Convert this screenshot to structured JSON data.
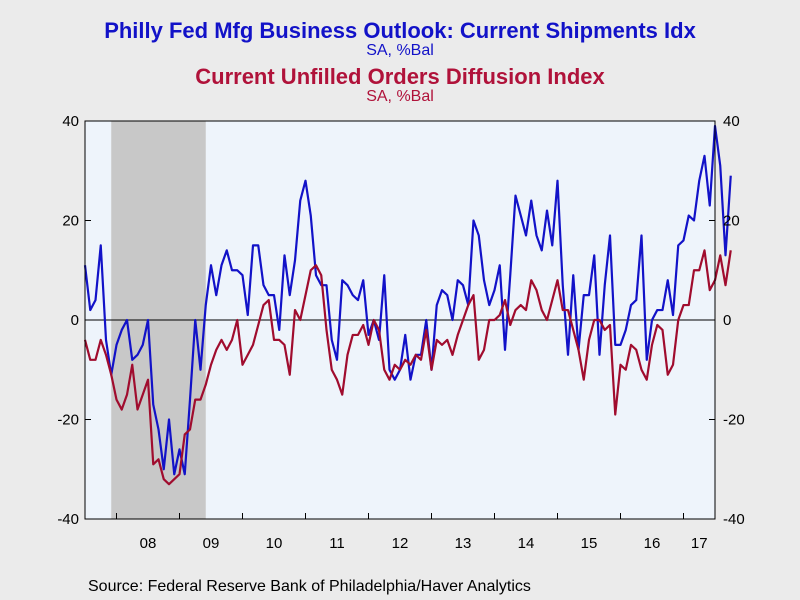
{
  "titles": {
    "line1": "Philly Fed Mfg Business Outlook: Current Shipments Idx",
    "line1_sub": "SA, %Bal",
    "line2": "Current Unfilled Orders Diffusion Index",
    "line2_sub": "SA, %Bal"
  },
  "source": "Source:  Federal Reserve Bank of Philadelphia/Haver Analytics",
  "colors": {
    "shipments": "#1212c8",
    "unfilled": "#a00c2e",
    "plot_bg": "#eef4fb",
    "recession": "#c8c8c8"
  },
  "chart_data": {
    "type": "line",
    "x_start": "2007-07",
    "frequency": "monthly",
    "xlim": [
      "2007-07",
      "2017-07"
    ],
    "ylim": [
      -40,
      40
    ],
    "y_ticks": [
      -40,
      -20,
      0,
      20,
      40
    ],
    "y_tick_labels": [
      "-40",
      "-20",
      "0",
      "20",
      "40"
    ],
    "x_tick_labels": [
      "08",
      "09",
      "10",
      "11",
      "12",
      "13",
      "14",
      "15",
      "16",
      "17"
    ],
    "recession_shading": {
      "start": "2007-12",
      "end": "2009-06"
    },
    "zero_line": true,
    "series": [
      {
        "key": "shipments",
        "values": [
          11,
          2,
          4,
          15,
          -4,
          -11,
          -5,
          -2,
          0,
          -8,
          -7,
          -5,
          0,
          -17,
          -22,
          -30,
          -20,
          -31,
          -26,
          -31,
          -16,
          0,
          -10,
          3,
          11,
          5,
          11,
          14,
          10,
          10,
          9,
          1,
          15,
          15,
          7,
          5,
          5,
          -2,
          13,
          5,
          12,
          24,
          28,
          21,
          9,
          7,
          7,
          -4,
          -8,
          8,
          7,
          5,
          4,
          8,
          -3,
          0,
          -4,
          9,
          -10,
          -12,
          -10,
          -3,
          -12,
          -7,
          -7,
          0,
          -10,
          3,
          6,
          5,
          0,
          8,
          7,
          3,
          20,
          17,
          8,
          3,
          6,
          11,
          -6,
          9,
          25,
          21,
          17,
          24,
          17,
          14,
          22,
          15,
          28,
          7,
          -7,
          9,
          -6,
          5,
          5,
          13,
          -7,
          7,
          17,
          -5,
          -5,
          -2,
          3,
          4,
          17,
          -8,
          0,
          2,
          2,
          8,
          1,
          15,
          16,
          21,
          20,
          28,
          33,
          23,
          39,
          31,
          13,
          29
        ],
        "marker": "none"
      },
      {
        "key": "unfilled",
        "values": [
          -4,
          -8,
          -8,
          -4,
          -7,
          -11,
          -16,
          -18,
          -15,
          -9,
          -18,
          -15,
          -12,
          -29,
          -28,
          -32,
          -33,
          -32,
          -31,
          -23,
          -22,
          -16,
          -16,
          -13,
          -9,
          -6,
          -4,
          -6,
          -4,
          0,
          -9,
          -7,
          -5,
          -1,
          3,
          4,
          -4,
          -4,
          -5,
          -11,
          2,
          0,
          5,
          10,
          11,
          9,
          -2,
          -10,
          -12,
          -15,
          -7,
          -3,
          -3,
          -1,
          -5,
          0,
          -2,
          -10,
          -12,
          -9,
          -10,
          -8,
          -9,
          -7,
          -8,
          -2,
          -10,
          -4,
          -5,
          -4,
          -7,
          -3,
          0,
          3,
          5,
          -8,
          -6,
          0,
          0,
          1,
          4,
          -1,
          2,
          3,
          2,
          8,
          6,
          2,
          0,
          4,
          8,
          2,
          2,
          -2,
          -6,
          -12,
          -4,
          0,
          0,
          -2,
          -1,
          -19,
          -9,
          -10,
          -5,
          -6,
          -10,
          -12,
          -5,
          -1,
          -2,
          -11,
          -9,
          0,
          3,
          3,
          10,
          10,
          14,
          6,
          8,
          13,
          7,
          14
        ],
        "marker": "none"
      }
    ]
  }
}
